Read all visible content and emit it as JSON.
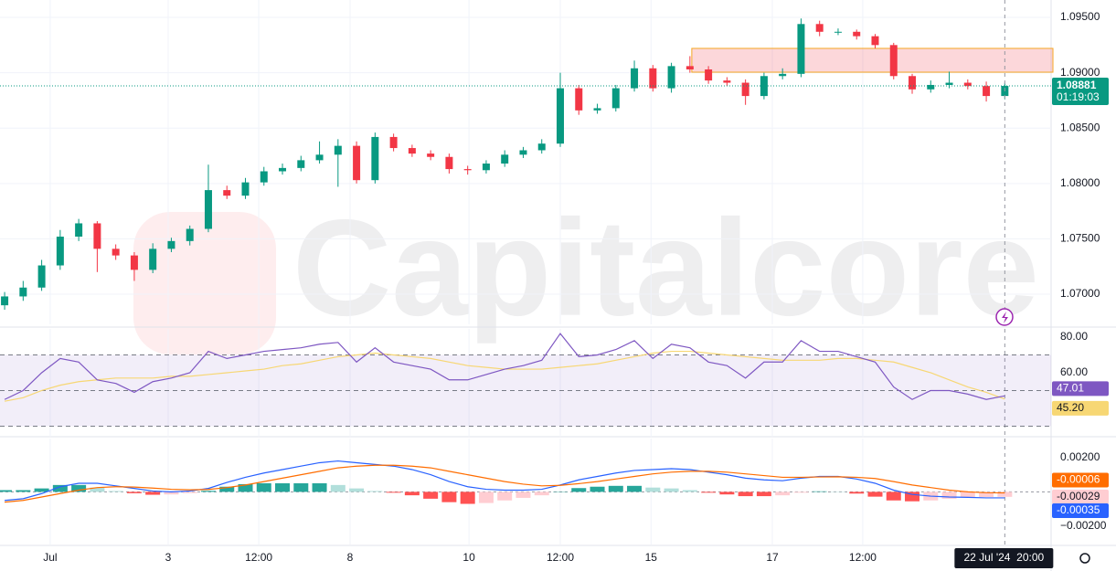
{
  "chart_data": [
    {
      "type": "candlestick",
      "watermark": "Capitalcore",
      "countdown": "01:19:03",
      "xlim": [
        -0.25,
        56.5
      ],
      "xticks": [
        {
          "value": 2.46,
          "label": "Jul"
        },
        {
          "value": 8.83,
          "label": "3"
        },
        {
          "value": 13.72,
          "label": "12:00"
        },
        {
          "value": 18.65,
          "label": "8"
        },
        {
          "value": 25.07,
          "label": "10"
        },
        {
          "value": 30.0,
          "label": "12:00"
        },
        {
          "value": 34.9,
          "label": "15"
        },
        {
          "value": 41.45,
          "label": "17"
        },
        {
          "value": 46.33,
          "label": "12:00"
        }
      ],
      "crosshair": {
        "value": 54,
        "label": "22 Jul '24  20:00"
      },
      "ylim": [
        1.06728,
        1.09657
      ],
      "yticks": [
        {
          "value": 1.07,
          "label": "1.07000"
        },
        {
          "value": 1.075,
          "label": "1.07500"
        },
        {
          "value": 1.08,
          "label": "1.08000"
        },
        {
          "value": 1.085,
          "label": "1.08500"
        },
        {
          "value": 1.09,
          "label": "1.09000"
        },
        {
          "value": 1.095,
          "label": "1.09500"
        }
      ],
      "up_color": "#089981",
      "down_color": "#f23645",
      "zone": {
        "x_start": 37.1,
        "y": [
          1.09005,
          1.0922
        ]
      },
      "open": [
        1.069,
        1.0698,
        1.0706,
        1.0726,
        1.0752,
        1.0764,
        1.0741,
        1.0735,
        1.0722,
        1.0741,
        1.0748,
        1.0759,
        1.0794,
        1.0789,
        1.0801,
        1.0811,
        1.0814,
        1.0821,
        1.0826,
        1.0834,
        1.0803,
        1.0842,
        1.0832,
        1.0827,
        1.0824,
        1.0813,
        1.0812,
        1.0818,
        1.0826,
        1.083,
        1.0836,
        1.0886,
        1.0866,
        1.0868,
        1.0886,
        1.0904,
        1.0886,
        1.0906,
        1.0903,
        1.0893,
        1.0891,
        1.0879,
        1.0897,
        1.0899,
        1.0944,
        1.0937,
        1.0937,
        1.0933,
        1.0925,
        1.0897,
        1.0885,
        1.0889,
        1.0891,
        1.0888,
        1.0879
      ],
      "high": [
        1.0702,
        1.0712,
        1.0731,
        1.0758,
        1.0768,
        1.0766,
        1.0745,
        1.0738,
        1.0746,
        1.0751,
        1.0762,
        1.0817,
        1.0798,
        1.0805,
        1.0815,
        1.0818,
        1.0825,
        1.0838,
        1.084,
        1.0838,
        1.0846,
        1.0845,
        1.0835,
        1.083,
        1.0827,
        1.0816,
        1.0821,
        1.083,
        1.0833,
        1.084,
        1.09,
        1.0889,
        1.0872,
        1.0889,
        1.0911,
        1.0907,
        1.0909,
        1.0915,
        1.0906,
        1.0896,
        1.0894,
        1.09,
        1.0904,
        1.0949,
        1.0947,
        1.094,
        1.0939,
        1.0935,
        1.0927,
        1.0899,
        1.0893,
        1.0901,
        1.0894,
        1.0892,
        1.0891
      ],
      "low": [
        1.0686,
        1.0694,
        1.0703,
        1.0722,
        1.0748,
        1.072,
        1.0731,
        1.0712,
        1.0719,
        1.0738,
        1.0744,
        1.0756,
        1.0786,
        1.0786,
        1.0798,
        1.0808,
        1.0811,
        1.0818,
        1.0797,
        1.08,
        1.08,
        1.0829,
        1.0824,
        1.0821,
        1.0809,
        1.0808,
        1.0809,
        1.0815,
        1.0823,
        1.0827,
        1.0833,
        1.0862,
        1.0863,
        1.0865,
        1.0883,
        1.0883,
        1.0882,
        1.09,
        1.089,
        1.0888,
        1.0871,
        1.0876,
        1.0894,
        1.0896,
        1.0933,
        1.0934,
        1.093,
        1.0922,
        1.0894,
        1.0881,
        1.0882,
        1.0886,
        1.0885,
        1.0874,
        1.0876
      ],
      "close": [
        1.0698,
        1.0706,
        1.0726,
        1.0752,
        1.0764,
        1.0741,
        1.0735,
        1.0722,
        1.0741,
        1.0748,
        1.0759,
        1.0794,
        1.0789,
        1.0801,
        1.0811,
        1.0814,
        1.0821,
        1.0826,
        1.0834,
        1.0803,
        1.0842,
        1.0832,
        1.0827,
        1.0824,
        1.0813,
        1.0812,
        1.0818,
        1.0826,
        1.083,
        1.0836,
        1.0886,
        1.0866,
        1.0868,
        1.0886,
        1.0904,
        1.0886,
        1.0906,
        1.0903,
        1.0893,
        1.0891,
        1.0879,
        1.0897,
        1.0899,
        1.0944,
        1.0937,
        1.0937,
        1.0933,
        1.0925,
        1.0897,
        1.0885,
        1.0889,
        1.0891,
        1.0888,
        1.0879,
        1.08881
      ]
    },
    {
      "type": "line",
      "ylim": [
        24.1,
        84.6
      ],
      "yticks": [
        {
          "value": 60,
          "label": "60.00"
        },
        {
          "value": 80,
          "label": "80.00"
        }
      ],
      "bands": [
        70,
        50,
        30
      ],
      "series": [
        {
          "color": "#7e57c2",
          "last_label": "47.01",
          "values": [
            45,
            50,
            60,
            68,
            66,
            56,
            54,
            49,
            55,
            57,
            60,
            72,
            68,
            70,
            72,
            73,
            74,
            76,
            77,
            66,
            74,
            66,
            64,
            62,
            56,
            56,
            59,
            62,
            64,
            67,
            82,
            69,
            70,
            73,
            78,
            68,
            76,
            74,
            66,
            64,
            57,
            66,
            66,
            78,
            72,
            72,
            69,
            66,
            52,
            45,
            50,
            50,
            48,
            45,
            47.01
          ]
        },
        {
          "color": "#f7d774",
          "last_label": "45.20",
          "values": [
            44,
            46,
            50,
            53,
            55,
            56,
            57,
            57,
            57,
            58,
            58,
            59,
            60,
            61,
            62,
            64,
            65,
            67,
            69,
            70,
            71,
            70,
            69,
            68,
            66,
            64,
            63,
            62,
            62,
            62,
            63,
            64,
            65,
            67,
            69,
            71,
            72,
            72,
            71,
            70,
            69,
            68,
            67,
            67,
            67,
            68,
            68,
            67,
            66,
            63,
            60,
            56,
            52,
            49,
            45.2
          ]
        }
      ]
    },
    {
      "type": "combo",
      "ylim": [
        -0.00307,
        0.00311
      ],
      "yticks": [
        {
          "value": -0.002,
          "label": "−0.00200"
        },
        {
          "value": 0.002,
          "label": "0.00200"
        }
      ],
      "histogram": {
        "colors": [
          "#26a69a",
          "#b2dfdb",
          "#ff5252",
          "#ffcdd2"
        ],
        "values": [
          0.0001,
          0.0001,
          0.0002,
          0.0004,
          0.0004,
          0.00025,
          5e-05,
          -8e-05,
          -0.00017,
          -0.00015,
          -7e-05,
          6e-05,
          0.0003,
          0.00045,
          0.0005,
          0.0005,
          0.0005,
          0.0005,
          0.0004,
          0.0002,
          5e-05,
          -5e-05,
          -0.0002,
          -0.0004,
          -0.0006,
          -0.0007,
          -0.00065,
          -0.0005,
          -0.00035,
          -0.0002,
          2e-05,
          0.00022,
          0.0003,
          0.00035,
          0.00035,
          0.00025,
          0.0002,
          0.0001,
          -5e-05,
          -0.00015,
          -0.00025,
          -0.00025,
          -0.0002,
          -5e-05,
          3e-05,
          2e-05,
          -0.0001,
          -0.00028,
          -0.0005,
          -0.00055,
          -0.0005,
          -0.0004,
          -0.00032,
          -0.0003,
          -0.00029
        ]
      },
      "series": [
        {
          "color": "#2962ff",
          "values": [
            -0.0005,
            -0.0004,
            -0.0001,
            0.0003,
            0.0005,
            0.0005,
            0.00035,
            0.0002,
            5e-05,
            0,
            5e-05,
            0.0002,
            0.00055,
            0.00085,
            0.0011,
            0.0013,
            0.0015,
            0.0017,
            0.0018,
            0.0017,
            0.0016,
            0.0015,
            0.0013,
            0.001,
            0.0006,
            0.0003,
            0.00015,
            0.0001,
            0.0001,
            0.00015,
            0.0004,
            0.0007,
            0.0009,
            0.0011,
            0.00125,
            0.0013,
            0.00135,
            0.0013,
            0.00115,
            0.001,
            0.0008,
            0.0007,
            0.00065,
            0.0008,
            0.0009,
            0.0009,
            0.00075,
            0.0005,
            0.0001,
            -0.00015,
            -0.00025,
            -0.0003,
            -0.00032,
            -0.00035,
            -0.00035
          ]
        },
        {
          "color": "#ff6d00",
          "values": [
            -0.0006,
            -0.0005,
            -0.0003,
            -0.0001,
            0.0001,
            0.00025,
            0.0003,
            0.00028,
            0.00022,
            0.00015,
            0.00012,
            0.00014,
            0.00025,
            0.0004,
            0.0006,
            0.0008,
            0.001,
            0.0012,
            0.0014,
            0.0015,
            0.00155,
            0.00155,
            0.0015,
            0.0014,
            0.0012,
            0.001,
            0.0008,
            0.0006,
            0.00045,
            0.00035,
            0.00038,
            0.00048,
            0.0006,
            0.00075,
            0.0009,
            0.00105,
            0.00115,
            0.0012,
            0.0012,
            0.00115,
            0.00105,
            0.00095,
            0.00085,
            0.00085,
            0.00087,
            0.00088,
            0.00085,
            0.00078,
            0.0006,
            0.0004,
            0.00025,
            0.0001,
            0,
            -5e-05,
            -6e-05
          ]
        }
      ]
    }
  ]
}
